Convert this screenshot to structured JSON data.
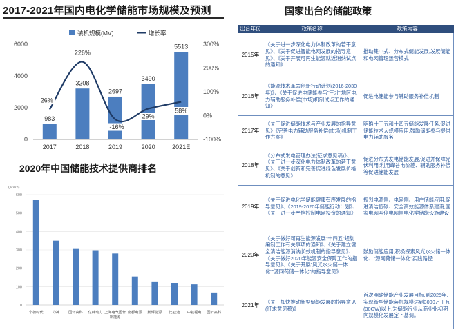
{
  "left_top": {
    "title": "2017-2021年国内电化学储能市场规模及预测"
  },
  "left_bottom": {
    "title": "2020年中国储能技术提供商排名"
  },
  "right": {
    "title": "国家出台的储能政策",
    "headers": [
      "出台年份",
      "政策名称",
      "政策内容"
    ],
    "rows": [
      {
        "year": "2015年",
        "policies": "《关于进一步深化电力体制改革的若干意见》、《关于促进智能电网发展的指导意见》、《关于开展可再生能源就近消纳试点的通知》",
        "content": "推动集中式、分布式储能发展,发展储能和电网管理运营模式"
      },
      {
        "year": "2016年",
        "policies": "《能源技术革命创新行动计划(2016-2030年)》、《关于促进电储能参与\"三北\"地区电力辅助服务补偿(市场)机制试点工作的通知》",
        "content": "促进电储能参与辅助服务补偿机制"
      },
      {
        "year": "2017年",
        "policies": "《关于促进储能技术与产业发展的指导意见》《完善电力辅助服务补偿(市场)机制工作方案》",
        "content": "明确十三五和十四五储能发展任务,促进储能技术大规模应用;鼓励储能参与提供电力辅助服务"
      },
      {
        "year": "2018年",
        "policies": "《分布式发电管理办法(征求意见稿)》、《关于进一步深化电力体制改革的若干意见》、《关于创新和完善促进绿色发展价格机制的意见》",
        "content": "促进分布式发电储能发展,促进并保障光伏利用;利用峰谷电价差、辅助服务补偿等促进储能发展"
      },
      {
        "year": "2019年",
        "policies": "《关于促进电化学储能健康有序发展的指导意见》、《2019-2020年储能行动计划》、《关于进一步严格控制电网投资的通知》",
        "content": "规划电源侧、电网侧、用户储能应用;促进清洁低碳、安全高效能源体系建设;国家电网叫停电网侧电化学储能设施建设"
      },
      {
        "year": "2020年",
        "policies": "《关于做好可再生能源发展\"十四五\"规划编制工作有关事项的通知》、《关于建立健全清洁能源消纳长效机制的指导意见》、《关于做好2020年能源安全保障工作的指导意见》、《关于开展\"风光水火储一体化\"\"源网荷储一体化\"的指导意见》",
        "content": "鼓励储能应用;积极探索风光水火储一体化、\"源网荷储一体化\"实践路径"
      },
      {
        "year": "2021年",
        "policies": "《关于加快推动新型储能发展的指导意见(征求意见稿)》",
        "content": "首次明确储能产业发展目标,到2025年,实现新型储能装机规模达到3000万千瓦(30GW)以上,为储能行业从商业化初期向规模化发展定下基调。"
      }
    ]
  },
  "chart_data": [
    {
      "type": "bar",
      "categories": [
        "2017",
        "2018",
        "2019",
        "2020",
        "2021E"
      ],
      "series": [
        {
          "name": "装机规模(MV)",
          "type": "bar",
          "values": [
            983,
            3208,
            2697,
            3490,
            5513
          ],
          "labels": [
            "983",
            "3208",
            "2697",
            "3490",
            "5513"
          ]
        },
        {
          "name": "增长率",
          "type": "line",
          "values": [
            26,
            226,
            -16,
            29,
            58
          ],
          "labels": [
            "26%",
            "226%",
            "-16%",
            "29%",
            "58%"
          ]
        }
      ],
      "y_left": {
        "ticks": [
          "0",
          "2000",
          "4000",
          "6000"
        ],
        "range": [
          0,
          6000
        ]
      },
      "y_right": {
        "ticks": [
          "-100%",
          "0%",
          "100%",
          "200%",
          "300%"
        ],
        "range": [
          -100,
          300
        ]
      },
      "legend_position": "top",
      "colors": {
        "bar": "#4c7ebf",
        "line": "#1f3b66"
      },
      "grid": false
    },
    {
      "type": "bar",
      "y_unit": "(MWh)",
      "categories": [
        "宁德时代",
        "力神",
        "国轩高科",
        "亿纬动力",
        "上海电气国轩新能源",
        "南都电源",
        "鹏辉能源",
        "比亚迪",
        "中航锂电",
        "国轩高科"
      ],
      "values": [
        570,
        350,
        305,
        298,
        280,
        155,
        128,
        120,
        112,
        68
      ],
      "y_ticks": [
        "0",
        "100",
        "200",
        "300",
        "400",
        "500",
        "600"
      ],
      "range": [
        0,
        600
      ],
      "colors": {
        "bar": "#4c7ebf"
      },
      "grid": true
    }
  ]
}
